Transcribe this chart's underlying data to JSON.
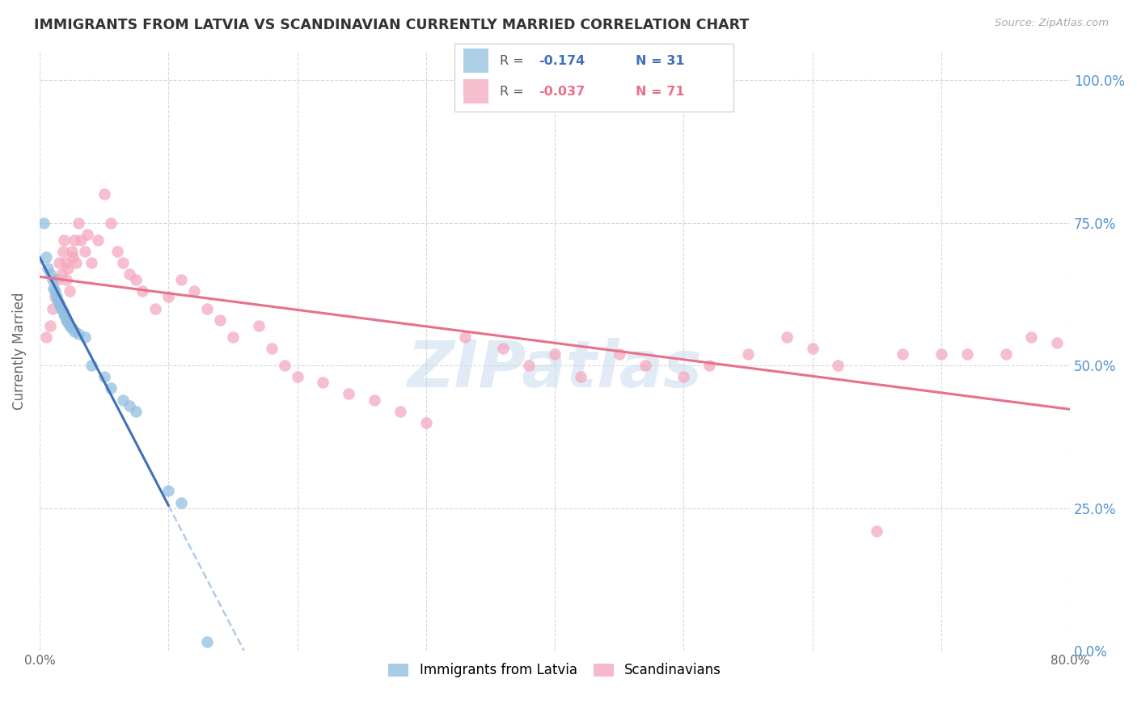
{
  "title": "IMMIGRANTS FROM LATVIA VS SCANDINAVIAN CURRENTLY MARRIED CORRELATION CHART",
  "source": "Source: ZipAtlas.com",
  "ylabel": "Currently Married",
  "legend_blue_label": "Immigrants from Latvia",
  "legend_pink_label": "Scandinavians",
  "blue_color": "#92bfe0",
  "pink_color": "#f4a8be",
  "regression_blue_color": "#4070b8",
  "regression_pink_color": "#e8708a",
  "regression_blue_dashed_color": "#b0cce8",
  "watermark": "ZIPatlas",
  "background_color": "#ffffff",
  "grid_color": "#d8d8d8",
  "title_color": "#333333",
  "right_axis_color": "#5090d0",
  "blue_scatter_x": [
    0.3,
    0.5,
    0.6,
    0.8,
    1.0,
    1.1,
    1.2,
    1.3,
    1.4,
    1.5,
    1.6,
    1.7,
    1.8,
    1.9,
    2.0,
    2.1,
    2.2,
    2.3,
    2.5,
    2.7,
    3.0,
    3.5,
    4.0,
    5.0,
    5.5,
    6.5,
    7.0,
    7.5,
    10.0,
    11.0,
    13.0
  ],
  "blue_scatter_y": [
    75.0,
    69.0,
    67.0,
    66.0,
    65.0,
    63.5,
    63.0,
    62.0,
    61.5,
    61.0,
    60.5,
    60.0,
    59.5,
    59.0,
    58.5,
    58.0,
    57.5,
    57.0,
    56.5,
    56.0,
    55.5,
    55.0,
    50.0,
    48.0,
    46.0,
    44.0,
    43.0,
    42.0,
    28.0,
    26.0,
    1.5
  ],
  "pink_scatter_x": [
    0.5,
    0.8,
    1.0,
    1.2,
    1.4,
    1.5,
    1.7,
    1.8,
    1.9,
    2.0,
    2.1,
    2.2,
    2.3,
    2.5,
    2.6,
    2.7,
    2.8,
    3.0,
    3.2,
    3.5,
    3.7,
    4.0,
    4.5,
    5.0,
    5.5,
    6.0,
    6.5,
    7.0,
    7.5,
    8.0,
    9.0,
    10.0,
    11.0,
    12.0,
    13.0,
    14.0,
    15.0,
    17.0,
    18.0,
    19.0,
    20.0,
    22.0,
    24.0,
    26.0,
    28.0,
    30.0,
    33.0,
    36.0,
    38.0,
    40.0,
    42.0,
    45.0,
    47.0,
    50.0,
    52.0,
    55.0,
    58.0,
    60.0,
    62.0,
    65.0,
    67.0,
    70.0,
    72.0,
    75.0,
    77.0,
    79.0
  ],
  "pink_scatter_y": [
    55.0,
    57.0,
    60.0,
    62.0,
    65.0,
    68.0,
    66.0,
    70.0,
    72.0,
    68.0,
    65.0,
    67.0,
    63.0,
    70.0,
    69.0,
    72.0,
    68.0,
    75.0,
    72.0,
    70.0,
    73.0,
    68.0,
    72.0,
    80.0,
    75.0,
    70.0,
    68.0,
    66.0,
    65.0,
    63.0,
    60.0,
    62.0,
    65.0,
    63.0,
    60.0,
    58.0,
    55.0,
    57.0,
    53.0,
    50.0,
    48.0,
    47.0,
    45.0,
    44.0,
    42.0,
    40.0,
    55.0,
    53.0,
    50.0,
    52.0,
    48.0,
    52.0,
    50.0,
    48.0,
    50.0,
    52.0,
    55.0,
    53.0,
    50.0,
    21.0,
    52.0,
    52.0,
    52.0,
    52.0,
    55.0,
    54.0
  ],
  "xlim": [
    0,
    80
  ],
  "ylim": [
    0,
    105
  ],
  "x_tick_vals": [
    0,
    10,
    20,
    30,
    40,
    50,
    60,
    70,
    80
  ],
  "x_tick_labels": [
    "0.0%",
    "",
    "",
    "",
    "",
    "",
    "",
    "",
    "80.0%"
  ],
  "y_tick_vals": [
    0,
    25,
    50,
    75,
    100
  ],
  "y_tick_labels_right": [
    "0.0%",
    "25.0%",
    "50.0%",
    "75.0%",
    "100.0%"
  ]
}
